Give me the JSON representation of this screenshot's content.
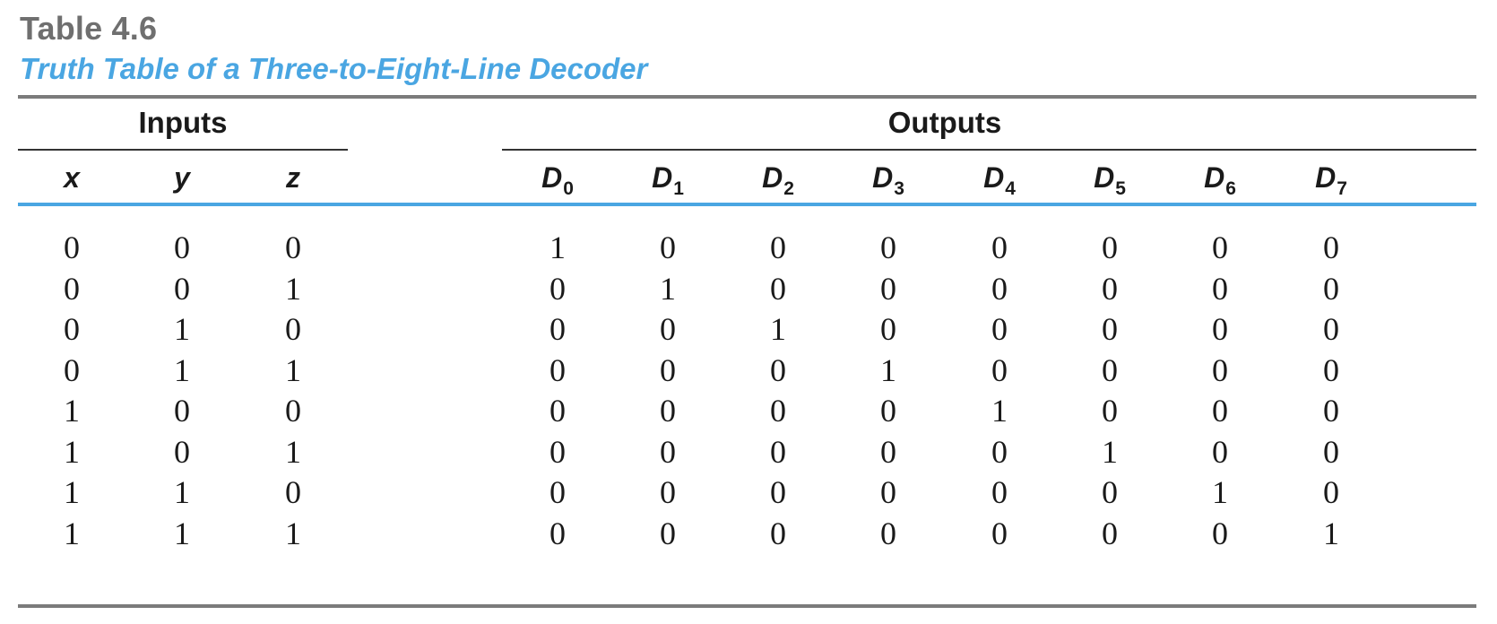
{
  "table": {
    "label": "Table 4.6",
    "caption": "Truth Table of a Three-to-Eight-Line Decoder",
    "groups": {
      "inputs": "Inputs",
      "outputs": "Outputs"
    },
    "columns": [
      {
        "name": "x",
        "sub": ""
      },
      {
        "name": "y",
        "sub": ""
      },
      {
        "name": "z",
        "sub": ""
      },
      {
        "name": "D",
        "sub": "0"
      },
      {
        "name": "D",
        "sub": "1"
      },
      {
        "name": "D",
        "sub": "2"
      },
      {
        "name": "D",
        "sub": "3"
      },
      {
        "name": "D",
        "sub": "4"
      },
      {
        "name": "D",
        "sub": "5"
      },
      {
        "name": "D",
        "sub": "6"
      },
      {
        "name": "D",
        "sub": "7"
      }
    ],
    "rows": [
      [
        "0",
        "0",
        "0",
        "1",
        "0",
        "0",
        "0",
        "0",
        "0",
        "0",
        "0"
      ],
      [
        "0",
        "0",
        "1",
        "0",
        "1",
        "0",
        "0",
        "0",
        "0",
        "0",
        "0"
      ],
      [
        "0",
        "1",
        "0",
        "0",
        "0",
        "1",
        "0",
        "0",
        "0",
        "0",
        "0"
      ],
      [
        "0",
        "1",
        "1",
        "0",
        "0",
        "0",
        "1",
        "0",
        "0",
        "0",
        "0"
      ],
      [
        "1",
        "0",
        "0",
        "0",
        "0",
        "0",
        "0",
        "1",
        "0",
        "0",
        "0"
      ],
      [
        "1",
        "0",
        "1",
        "0",
        "0",
        "0",
        "0",
        "0",
        "1",
        "0",
        "0"
      ],
      [
        "1",
        "1",
        "0",
        "0",
        "0",
        "0",
        "0",
        "0",
        "0",
        "1",
        "0"
      ],
      [
        "1",
        "1",
        "1",
        "0",
        "0",
        "0",
        "0",
        "0",
        "0",
        "0",
        "1"
      ]
    ]
  }
}
